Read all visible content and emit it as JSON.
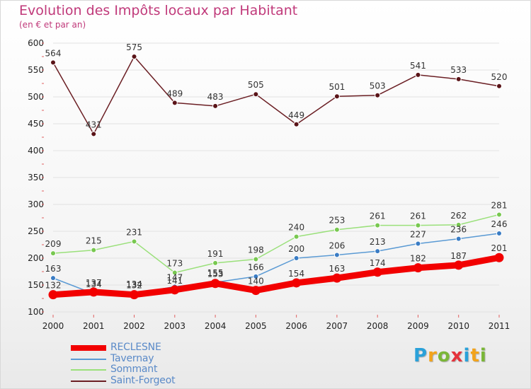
{
  "header": {
    "title": "Evolution des Impôts locaux par Habitant",
    "subtitle": "(en € et par an)"
  },
  "logo": {
    "letters": [
      "P",
      "r",
      "o",
      "x",
      "i",
      "t",
      "i"
    ],
    "colors": [
      "#2aa1d9",
      "#f2a31b",
      "#7ab637",
      "#e5323b",
      "#2aa1d9",
      "#f2a31b",
      "#7ab637"
    ]
  },
  "chart_data": {
    "type": "line",
    "title": "Evolution des Impôts locaux par Habitant",
    "subtitle": "(en € et par an)",
    "xlabel": "",
    "ylabel": "",
    "ylim": [
      100,
      600
    ],
    "yticks": [
      100,
      150,
      200,
      250,
      300,
      350,
      400,
      450,
      500,
      550,
      600
    ],
    "categories": [
      "2000",
      "2001",
      "2002",
      "2003",
      "2004",
      "2005",
      "2006",
      "2007",
      "2008",
      "2009",
      "2010",
      "2011"
    ],
    "legend_position": "bottom-left",
    "series": [
      {
        "name": "Saint-Forgeot",
        "color": "#6b1f24",
        "marker": "#5a1418",
        "values": [
          564,
          431,
          575,
          489,
          483,
          505,
          449,
          501,
          503,
          541,
          533,
          520
        ],
        "labels": [
          "564",
          "431",
          "575",
          "489",
          "483",
          "505",
          "449",
          "501",
          "503",
          "541",
          "533",
          "520"
        ],
        "bold": false
      },
      {
        "name": "Sommant",
        "color": "#9ae07a",
        "marker": "#78c850",
        "values": [
          209,
          215,
          231,
          173,
          191,
          198,
          240,
          253,
          261,
          261,
          262,
          281
        ],
        "labels": [
          "209",
          "215",
          "231",
          "173",
          "191",
          "198",
          "240",
          "253",
          "261",
          "261",
          "262",
          "281"
        ],
        "bold": false
      },
      {
        "name": "Tavernay",
        "color": "#5a9ad4",
        "marker": "#3a7cc4",
        "values": [
          163,
          134,
          134,
          147,
          155,
          166,
          200,
          206,
          213,
          227,
          236,
          246
        ],
        "labels": [
          "163",
          "134",
          "134",
          "147",
          "155",
          "166",
          "200",
          "206",
          "213",
          "227",
          "236",
          "246"
        ],
        "bold": false
      },
      {
        "name": "RECLESNE",
        "color": "#f20000",
        "marker": "#f20000",
        "values": [
          132,
          137,
          132,
          141,
          153,
          140,
          154,
          163,
          174,
          182,
          187,
          201
        ],
        "labels": [
          "132",
          "137",
          "132",
          "141",
          "153",
          "140",
          "154",
          "163",
          "174",
          "182",
          "187",
          "201"
        ],
        "bold": true
      }
    ]
  }
}
